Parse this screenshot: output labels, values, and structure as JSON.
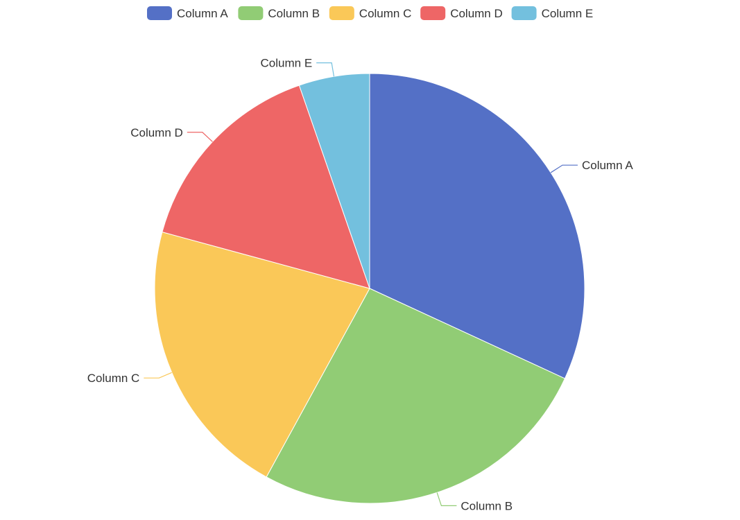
{
  "chart_data": {
    "type": "pie",
    "title": "",
    "categories": [
      "Column A",
      "Column B",
      "Column C",
      "Column D",
      "Column E"
    ],
    "values": [
      33,
      27,
      22,
      16,
      5.5
    ],
    "colors": [
      "#5470c6",
      "#91cc75",
      "#fac858",
      "#ee6666",
      "#73c0de"
    ],
    "legend": {
      "position": "top-center",
      "entries": [
        "Column A",
        "Column B",
        "Column C",
        "Column D",
        "Column E"
      ]
    },
    "slice_labels": [
      "Column A",
      "Column B",
      "Column C",
      "Column D",
      "Column E"
    ]
  }
}
